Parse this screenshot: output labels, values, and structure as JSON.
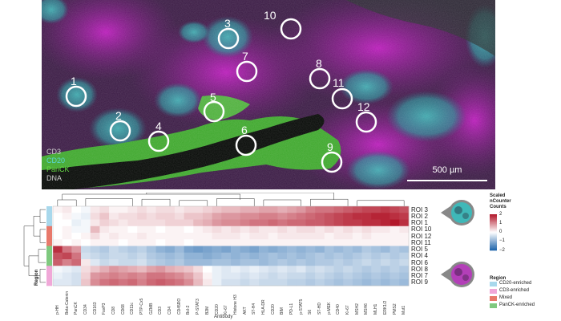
{
  "image": {
    "channel_legend": [
      {
        "label": "CD3",
        "color": "#d0d0d0"
      },
      {
        "label": "CD20",
        "color": "#5ad6d6"
      },
      {
        "label": "PanCK",
        "color": "#66dd44"
      },
      {
        "label": "DNA",
        "color": "#d0d0d0"
      }
    ],
    "scale_bar": "500 µm",
    "rois": [
      "1",
      "2",
      "3",
      "4",
      "5",
      "6",
      "7",
      "8",
      "9",
      "10",
      "11",
      "12"
    ]
  },
  "heatmap": {
    "rows": [
      "ROI 3",
      "ROI 2",
      "ROI 1",
      "ROI 10",
      "ROI 12",
      "ROI 11",
      "ROI 5",
      "ROI 4",
      "ROI 6",
      "ROI 8",
      "ROI 7",
      "ROI 9"
    ],
    "row_region": [
      "CD20-enriched",
      "CD20-enriched",
      "CD20-enriched",
      "Mixed",
      "Mixed",
      "Mixed",
      "PanCK-enriched",
      "PanCK-enriched",
      "PanCK-enriched",
      "CD3-enriched",
      "CD3-enriched",
      "CD3-enriched"
    ],
    "columns": [
      "p-HH",
      "Beta-Catenin",
      "PanCK",
      "CD34",
      "CD163",
      "FoxP3",
      "CD8",
      "CD68",
      "CD11c",
      "PTP-Cx5",
      "GZMB",
      "CD3",
      "CD4",
      "CD45RO",
      "Bcl-2",
      "P-STAT3",
      "B2M",
      "CD20",
      "Ki-67",
      "Histone H3",
      "AKT",
      "ST-H4",
      "HLA-DR",
      "CD20",
      "BIM",
      "PD-L1",
      "p-STAT5",
      "S6",
      "ST-HD",
      "p-MEK",
      "CD40",
      "Ki-67",
      "MSH2",
      "MSH6",
      "MLH1",
      "ERK1/2",
      "PMS2",
      "Mut1"
    ],
    "values": [
      [
        0.1,
        0.2,
        0.0,
        -0.1,
        0.2,
        0.3,
        0.1,
        0.1,
        0.2,
        0.3,
        0.2,
        0.3,
        0.3,
        0.2,
        0.3,
        0.3,
        0.4,
        0.5,
        0.6,
        0.6,
        0.7,
        0.7,
        0.8,
        0.8,
        0.7,
        0.8,
        0.9,
        1.1,
        1.2,
        1.2,
        1.3,
        1.4,
        1.5,
        1.6,
        1.6,
        1.7,
        1.6,
        1.5
      ],
      [
        0.0,
        0.1,
        -0.1,
        -0.2,
        0.3,
        0.5,
        0.2,
        0.3,
        0.3,
        0.4,
        0.3,
        0.4,
        0.4,
        0.3,
        0.5,
        0.5,
        0.6,
        0.8,
        0.9,
        0.9,
        1.0,
        1.0,
        1.1,
        1.1,
        1.0,
        1.1,
        1.2,
        1.3,
        1.4,
        1.5,
        1.6,
        1.7,
        1.8,
        1.8,
        1.9,
        1.9,
        1.8,
        1.7
      ],
      [
        0.0,
        0.0,
        -0.2,
        -0.1,
        0.2,
        0.4,
        0.3,
        0.2,
        0.3,
        0.3,
        0.3,
        0.3,
        0.4,
        0.4,
        0.4,
        0.6,
        0.7,
        0.9,
        1.0,
        1.0,
        1.1,
        1.2,
        1.2,
        1.3,
        1.2,
        1.3,
        1.3,
        1.4,
        1.4,
        1.5,
        1.6,
        1.7,
        1.7,
        1.8,
        1.8,
        1.9,
        2.0,
        1.8
      ],
      [
        0.0,
        0.1,
        -0.1,
        -0.1,
        0.6,
        0.2,
        0.1,
        0.1,
        0.0,
        0.1,
        0.1,
        0.0,
        0.1,
        0.1,
        0.0,
        0.1,
        0.2,
        0.3,
        0.2,
        0.3,
        0.2,
        0.3,
        0.2,
        0.2,
        0.3,
        0.2,
        0.3,
        0.3,
        0.2,
        0.3,
        0.2,
        0.3,
        0.2,
        0.3,
        0.2,
        0.2,
        0.1,
        0.2
      ],
      [
        0.0,
        0.1,
        0.0,
        0.1,
        0.3,
        0.1,
        0.2,
        0.1,
        0.1,
        0.2,
        0.1,
        0.1,
        0.1,
        0.1,
        0.1,
        0.1,
        0.1,
        0.2,
        0.2,
        0.2,
        0.1,
        0.2,
        0.2,
        0.1,
        0.2,
        0.2,
        0.2,
        0.2,
        0.2,
        0.1,
        0.2,
        0.2,
        0.1,
        0.2,
        0.1,
        0.1,
        0.1,
        0.1
      ],
      [
        0.1,
        0.0,
        0.1,
        0.0,
        0.1,
        0.1,
        0.1,
        0.0,
        0.1,
        0.1,
        0.1,
        0.0,
        0.1,
        0.1,
        0.0,
        0.1,
        0.1,
        0.1,
        0.1,
        0.1,
        0.1,
        0.1,
        0.1,
        0.1,
        0.1,
        0.1,
        0.1,
        0.1,
        0.1,
        0.1,
        0.1,
        0.1,
        0.1,
        0.1,
        0.1,
        0.1,
        0.1,
        0.1
      ],
      [
        1.8,
        1.2,
        0.9,
        -0.5,
        -0.6,
        -0.7,
        -0.5,
        -0.6,
        -0.7,
        -0.6,
        -0.8,
        -1.0,
        -1.1,
        -0.9,
        -1.2,
        -1.3,
        -1.2,
        -1.1,
        -1.2,
        -1.0,
        -1.1,
        -1.2,
        -1.0,
        -1.1,
        -1.0,
        -0.9,
        -1.0,
        -0.9,
        -1.0,
        -0.8,
        -0.9,
        -0.8,
        -0.9,
        -0.7,
        -0.8,
        -0.9,
        -0.7,
        -0.8
      ],
      [
        1.5,
        1.6,
        1.2,
        -0.4,
        -0.5,
        -0.6,
        -0.5,
        -0.5,
        -0.6,
        -0.5,
        -0.7,
        -0.8,
        -0.9,
        -0.8,
        -1.0,
        -1.0,
        -1.1,
        -1.0,
        -0.9,
        -1.0,
        -0.9,
        -1.0,
        -0.9,
        -0.8,
        -0.9,
        -0.8,
        -0.9,
        -0.8,
        -0.7,
        -0.8,
        -0.7,
        -0.8,
        -0.7,
        -0.6,
        -0.7,
        -0.6,
        -0.7,
        -0.6
      ],
      [
        1.4,
        1.1,
        1.3,
        0.2,
        -0.3,
        -0.5,
        -0.4,
        -0.5,
        -0.5,
        -0.4,
        -0.6,
        -0.7,
        -0.8,
        -0.7,
        -0.9,
        -0.9,
        -0.9,
        -0.8,
        -0.8,
        -0.9,
        -0.8,
        -0.8,
        -0.9,
        -0.8,
        -0.7,
        -0.8,
        -0.7,
        -0.8,
        -0.7,
        -0.7,
        -0.6,
        -0.7,
        -0.6,
        -0.5,
        -0.6,
        -0.5,
        -0.6,
        -0.5
      ],
      [
        -0.1,
        -0.2,
        -0.3,
        0.3,
        0.5,
        0.7,
        0.9,
        0.8,
        0.7,
        0.6,
        0.8,
        0.9,
        0.7,
        0.6,
        0.5,
        0.3,
        0.0,
        -0.2,
        -0.3,
        -0.2,
        -0.3,
        -0.2,
        -0.3,
        -0.4,
        -0.3,
        -0.4,
        -0.3,
        -0.5,
        -0.4,
        -0.5,
        -0.6,
        -0.5,
        -0.6,
        -0.7,
        -0.6,
        -0.7,
        -0.6,
        -0.7
      ],
      [
        -0.2,
        -0.3,
        -0.4,
        0.4,
        0.9,
        1.0,
        1.1,
        1.0,
        1.1,
        1.0,
        1.2,
        1.2,
        1.1,
        1.0,
        0.8,
        0.5,
        0.1,
        -0.2,
        -0.3,
        -0.3,
        -0.4,
        -0.3,
        -0.4,
        -0.5,
        -0.4,
        -0.5,
        -0.5,
        -0.6,
        -0.5,
        -0.6,
        -0.7,
        -0.6,
        -0.7,
        -0.8,
        -0.7,
        -0.8,
        -0.7,
        -0.8
      ],
      [
        -0.3,
        -0.3,
        -0.4,
        0.5,
        1.0,
        1.2,
        1.3,
        1.2,
        1.3,
        1.1,
        1.3,
        1.4,
        1.3,
        1.2,
        1.0,
        0.6,
        0.2,
        -0.2,
        -0.4,
        -0.4,
        -0.5,
        -0.4,
        -0.5,
        -0.5,
        -0.5,
        -0.6,
        -0.6,
        -0.7,
        -0.6,
        -0.7,
        -0.8,
        -0.7,
        -0.8,
        -0.9,
        -0.8,
        -0.9,
        -0.8,
        -0.9
      ]
    ],
    "axis_title": "Antibody",
    "region_title": "Region",
    "colorbar_title": [
      "Scaled",
      "nCounter",
      "Counts"
    ],
    "colorbar_ticks": [
      "2",
      "1",
      "0",
      "−1",
      "−2"
    ],
    "region_legend": {
      "title": "Region",
      "items": [
        {
          "label": "CD20-enriched",
          "color": "#a8d8ec"
        },
        {
          "label": "CD3-enriched",
          "color": "#f0a8d8"
        },
        {
          "label": "Mixed",
          "color": "#e8796b"
        },
        {
          "label": "PanCK-enriched",
          "color": "#7fc97f"
        }
      ]
    }
  }
}
